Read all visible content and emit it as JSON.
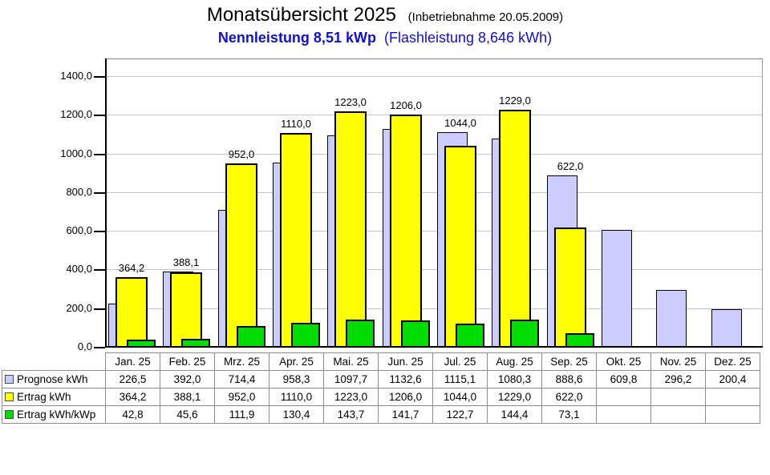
{
  "header": {
    "title": "Monatsübersicht 2025",
    "title_note": "(Inbetriebnahme  20.05.2009)",
    "subtitle_bold": "Nennleistung 8,51 kWp",
    "subtitle_note": "(Flashleistung 8,646 kWh)",
    "subtitle_color": "#0f0fdd"
  },
  "chart_data": {
    "type": "bar",
    "title": "Monatsübersicht 2025",
    "categories": [
      "Jan. 25",
      "Feb. 25",
      "Mrz. 25",
      "Apr. 25",
      "Mai. 25",
      "Jun. 25",
      "Jul. 25",
      "Aug. 25",
      "Sep. 25",
      "Okt. 25",
      "Nov. 25",
      "Dez. 25"
    ],
    "series": [
      {
        "name": "Prognose kWh",
        "color": "#ccccff",
        "values": [
          226.5,
          392.0,
          714.4,
          958.3,
          1097.7,
          1132.6,
          1115.1,
          1080.3,
          888.6,
          609.8,
          296.2,
          200.4
        ]
      },
      {
        "name": "Ertrag kWh",
        "color": "#ffff00",
        "values": [
          364.2,
          388.1,
          952.0,
          1110.0,
          1223.0,
          1206.0,
          1044.0,
          1229.0,
          622.0,
          null,
          null,
          null
        ],
        "labels": [
          "364,2",
          "388,1",
          "952,0",
          "1110,0",
          "1223,0",
          "1206,0",
          "1044,0",
          "1229,0",
          "622,0",
          "",
          "",
          ""
        ]
      },
      {
        "name": "Ertrag kWh/kWp",
        "color": "#00dd00",
        "values": [
          42.8,
          45.6,
          111.9,
          130.4,
          143.7,
          141.7,
          122.7,
          144.4,
          73.1,
          null,
          null,
          null
        ]
      }
    ],
    "ylim": [
      0,
      1490
    ],
    "grid": true,
    "legend_position": "table-left-column",
    "yticks": [
      {
        "value": 0,
        "label": "0,0"
      },
      {
        "value": 200,
        "label": "200,0"
      },
      {
        "value": 400,
        "label": "400,0"
      },
      {
        "value": 600,
        "label": "600,0"
      },
      {
        "value": 800,
        "label": "800,0"
      },
      {
        "value": 1000,
        "label": "1000,0"
      },
      {
        "value": 1200,
        "label": "1200,0"
      },
      {
        "value": 1400,
        "label": "1400,0"
      }
    ]
  },
  "table": {
    "columns": [
      "Jan. 25",
      "Feb. 25",
      "Mrz. 25",
      "Apr. 25",
      "Mai. 25",
      "Jun. 25",
      "Jul. 25",
      "Aug. 25",
      "Sep. 25",
      "Okt. 25",
      "Nov. 25",
      "Dez. 25"
    ],
    "rows": [
      {
        "label": "Prognose kWh",
        "swatch": "#ccccff",
        "cells": [
          "226,5",
          "392,0",
          "714,4",
          "958,3",
          "1097,7",
          "1132,6",
          "1115,1",
          "1080,3",
          "888,6",
          "609,8",
          "296,2",
          "200,4"
        ]
      },
      {
        "label": "Ertrag kWh",
        "swatch": "#ffff00",
        "cells": [
          "364,2",
          "388,1",
          "952,0",
          "1110,0",
          "1223,0",
          "1206,0",
          "1044,0",
          "1229,0",
          "622,0",
          "",
          "",
          ""
        ]
      },
      {
        "label": "Ertrag kWh/kWp",
        "swatch": "#00dd00",
        "cells": [
          "42,8",
          "45,6",
          "111,9",
          "130,4",
          "143,7",
          "141,7",
          "122,7",
          "144,4",
          "73,1",
          "",
          "",
          ""
        ]
      }
    ]
  }
}
